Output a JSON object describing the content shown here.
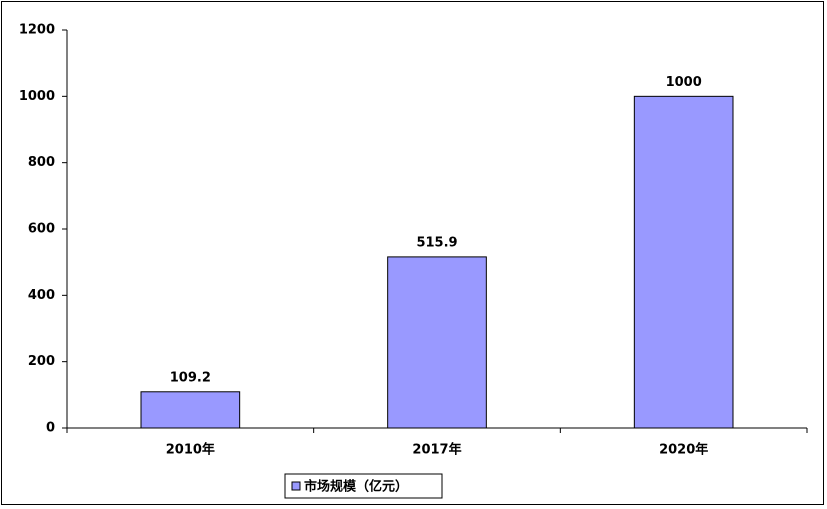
{
  "chart_data": {
    "type": "bar",
    "categories": [
      "2010年",
      "2017年",
      "2020年"
    ],
    "series": [
      {
        "name": "市场规模（亿元）",
        "color": "#9999ff",
        "values": [
          109.2,
          515.9,
          1000
        ]
      }
    ],
    "ylim": [
      0,
      1200
    ],
    "yticks": [
      0,
      200,
      400,
      600,
      800,
      1000,
      1200
    ],
    "grid": false,
    "legend": "bottom",
    "data_labels": true
  }
}
